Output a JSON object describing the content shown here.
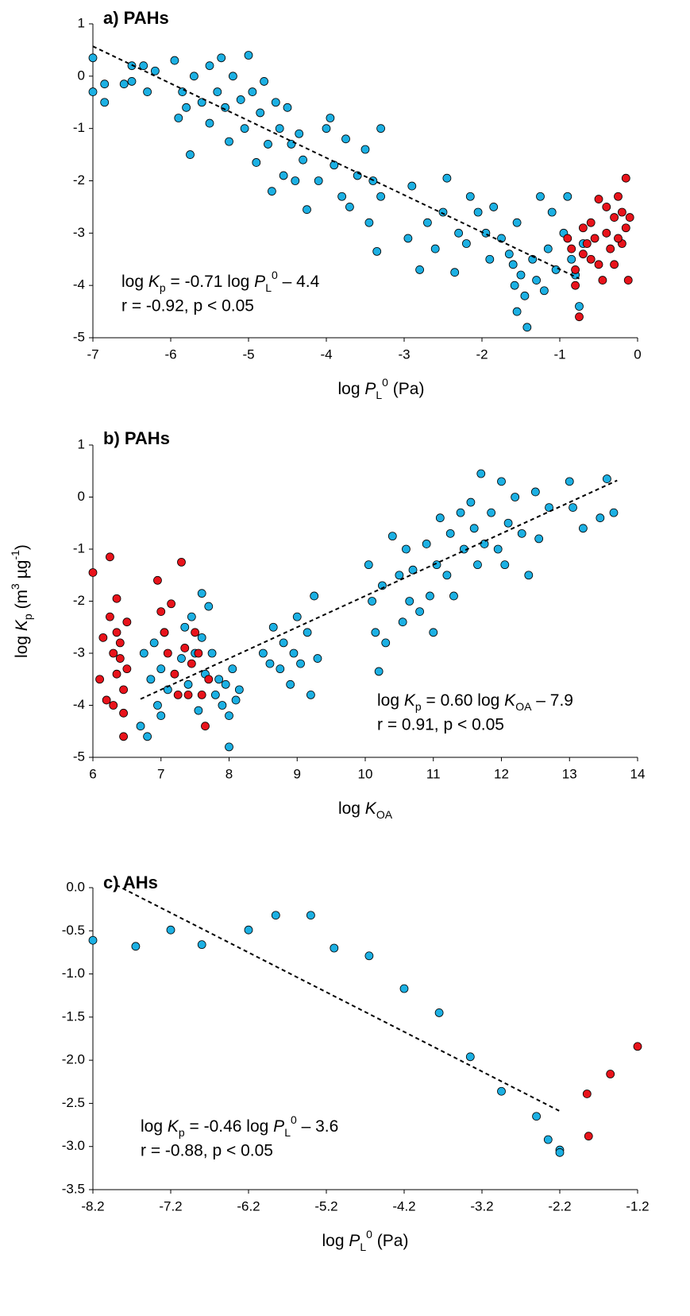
{
  "chart_data": [
    {
      "type": "scatter",
      "title": "a) PAHs",
      "equation": [
        [
          "log ",
          "K",
          "p",
          " = -0.71 log ",
          "P",
          "L",
          "0",
          " – 4.4"
        ],
        "r = -0.92, p < 0.05"
      ],
      "x_label": [
        "log ",
        "P",
        "L",
        "0",
        " (Pa)"
      ],
      "xlim": [
        -7,
        0
      ],
      "ylim": [
        -5,
        1
      ],
      "xticks": [
        -7,
        -6,
        -5,
        -4,
        -3,
        -2,
        -1,
        0
      ],
      "yticks": [
        -5,
        -4,
        -3,
        -2,
        -1,
        0,
        1
      ],
      "trendline": {
        "x": [
          -7,
          -0.75
        ],
        "values": [
          0.57,
          -3.87
        ]
      },
      "series": [
        {
          "color": "#1cb0e3",
          "x": [
            -7,
            -7,
            -6.85,
            -6.85,
            -6.6,
            -6.5,
            -6.5,
            -6.35,
            -6.3,
            -6.2,
            -5.95,
            -5.9,
            -5.85,
            -5.8,
            -5.75,
            -5.7,
            -5.6,
            -5.5,
            -5.5,
            -5.4,
            -5.35,
            -5.3,
            -5.25,
            -5.2,
            -5.1,
            -5.05,
            -5,
            -4.95,
            -4.9,
            -4.85,
            -4.8,
            -4.75,
            -4.7,
            -4.65,
            -4.6,
            -4.55,
            -4.5,
            -4.45,
            -4.4,
            -4.35,
            -4.3,
            -4.25,
            -4.1,
            -4,
            -3.95,
            -3.9,
            -3.8,
            -3.75,
            -3.7,
            -3.6,
            -3.5,
            -3.45,
            -3.4,
            -3.35,
            -3.3,
            -3.3,
            -2.95,
            -2.9,
            -2.8,
            -2.7,
            -2.6,
            -2.5,
            -2.45,
            -2.35,
            -2.3,
            -2.2,
            -2.15,
            -2.05,
            -1.95,
            -1.85,
            -1.75,
            -1.65,
            -1.6,
            -1.58,
            -1.55,
            -1.55,
            -1.5,
            -1.45,
            -1.42,
            -1.35,
            -1.3,
            -1.25,
            -1.2,
            -1.1,
            -1.05,
            -0.95,
            -0.9,
            -0.85,
            -0.8,
            -0.75,
            -0.7,
            -1.9,
            -1.15
          ],
          "values": [
            0.35,
            -0.3,
            -0.5,
            -0.15,
            -0.15,
            0.2,
            -0.1,
            0.2,
            -0.3,
            0.1,
            0.3,
            -0.8,
            -0.3,
            -0.6,
            -1.5,
            0,
            -0.5,
            -0.9,
            0.2,
            -0.3,
            0.35,
            -0.6,
            -1.25,
            0,
            -0.45,
            -1,
            0.4,
            -0.3,
            -1.65,
            -0.7,
            -0.1,
            -1.3,
            -2.2,
            -0.5,
            -1,
            -1.9,
            -0.6,
            -1.3,
            -2,
            -1.1,
            -1.6,
            -2.55,
            -2,
            -1,
            -0.8,
            -1.7,
            -2.3,
            -1.2,
            -2.5,
            -1.9,
            -1.4,
            -2.8,
            -2,
            -3.35,
            -1,
            -2.3,
            -3.1,
            -2.1,
            -3.7,
            -2.8,
            -3.3,
            -2.6,
            -1.95,
            -3.75,
            -3,
            -3.2,
            -2.3,
            -2.6,
            -3,
            -2.5,
            -3.1,
            -3.4,
            -3.6,
            -4,
            -4.5,
            -2.8,
            -3.8,
            -4.2,
            -4.8,
            -3.5,
            -3.9,
            -2.3,
            -4.1,
            -2.6,
            -3.7,
            -3,
            -2.3,
            -3.5,
            -3.8,
            -4.4,
            -3.2,
            -3.5,
            -3.3
          ]
        },
        {
          "color": "#e8131b",
          "x": [
            -0.9,
            -0.85,
            -0.8,
            -0.8,
            -0.75,
            -0.7,
            -0.7,
            -0.65,
            -0.6,
            -0.55,
            -0.5,
            -0.5,
            -0.45,
            -0.4,
            -0.4,
            -0.35,
            -0.3,
            -0.3,
            -0.25,
            -0.2,
            -0.2,
            -0.15,
            -0.15,
            -0.12,
            -0.1,
            -0.25,
            -0.6
          ],
          "values": [
            -3.1,
            -3.3,
            -3.7,
            -4,
            -4.6,
            -2.9,
            -3.4,
            -3.2,
            -2.8,
            -3.1,
            -3.6,
            -2.35,
            -3.9,
            -2.5,
            -3,
            -3.3,
            -2.7,
            -3.6,
            -2.3,
            -3.2,
            -2.6,
            -1.95,
            -2.9,
            -3.9,
            -2.7,
            -3.1,
            -3.5
          ]
        }
      ]
    },
    {
      "type": "scatter",
      "title": "b) PAHs",
      "equation": [
        [
          "log ",
          "K",
          "p",
          " = 0.60 log ",
          "K",
          "OA",
          " – 7.9"
        ],
        "r = 0.91, p < 0.05"
      ],
      "x_label": [
        "log ",
        "K",
        "OA"
      ],
      "y_label": [
        "log ",
        "K",
        "p",
        " (m",
        "3",
        " µg",
        "-1",
        ")"
      ],
      "xlim": [
        6,
        14
      ],
      "ylim": [
        -5,
        1
      ],
      "xticks": [
        6,
        7,
        8,
        9,
        10,
        11,
        12,
        13,
        14
      ],
      "yticks": [
        -5,
        -4,
        -3,
        -2,
        -1,
        0,
        1
      ],
      "trendline": {
        "x": [
          6.7,
          13.7
        ],
        "values": [
          -3.88,
          0.32
        ]
      },
      "series": [
        {
          "color": "#1cb0e3",
          "x": [
            6.7,
            6.75,
            6.8,
            6.85,
            6.9,
            6.95,
            7,
            7,
            7.05,
            7.1,
            7.3,
            7.35,
            7.4,
            7.45,
            7.5,
            7.55,
            7.6,
            7.6,
            7.65,
            7.7,
            7.75,
            7.8,
            7.85,
            7.9,
            7.95,
            8,
            8,
            8.05,
            8.1,
            8.15,
            8.5,
            8.6,
            8.65,
            8.75,
            8.8,
            8.9,
            8.95,
            9,
            9.05,
            9.15,
            9.2,
            9.25,
            9.3,
            10.05,
            10.1,
            10.15,
            10.2,
            10.25,
            10.3,
            10.4,
            10.5,
            10.55,
            10.6,
            10.65,
            10.7,
            10.8,
            10.9,
            10.95,
            11,
            11.05,
            11.1,
            11.2,
            11.25,
            11.3,
            11.4,
            11.45,
            11.55,
            11.6,
            11.65,
            11.7,
            11.75,
            11.85,
            11.95,
            12,
            12.05,
            12.1,
            12.2,
            12.3,
            12.4,
            12.5,
            12.55,
            12.7,
            13,
            13.05,
            13.2,
            13.45,
            13.55,
            13.65
          ],
          "values": [
            -4.4,
            -3,
            -4.6,
            -3.5,
            -2.8,
            -4,
            -3.3,
            -4.2,
            -2.6,
            -3.7,
            -3.1,
            -2.5,
            -3.6,
            -2.3,
            -3,
            -4.1,
            -1.85,
            -2.7,
            -3.4,
            -2.1,
            -3,
            -3.8,
            -3.5,
            -4,
            -3.6,
            -4.2,
            -4.8,
            -3.3,
            -3.9,
            -3.7,
            -3,
            -3.2,
            -2.5,
            -3.3,
            -2.8,
            -3.6,
            -3,
            -2.3,
            -3.2,
            -2.6,
            -3.8,
            -1.9,
            -3.1,
            -1.3,
            -2,
            -2.6,
            -3.35,
            -1.7,
            -2.8,
            -0.75,
            -1.5,
            -2.4,
            -1,
            -2,
            -1.4,
            -2.2,
            -0.9,
            -1.9,
            -2.6,
            -1.3,
            -0.4,
            -1.5,
            -0.7,
            -1.9,
            -0.3,
            -1,
            -0.1,
            -0.6,
            -1.3,
            0.45,
            -0.9,
            -0.3,
            -1,
            0.3,
            -1.3,
            -0.5,
            0,
            -0.7,
            -1.5,
            0.1,
            -0.8,
            -0.2,
            0.3,
            -0.2,
            -0.6,
            -0.4,
            0.35,
            -0.3
          ]
        },
        {
          "color": "#e8131b",
          "x": [
            6,
            6.1,
            6.15,
            6.2,
            6.25,
            6.25,
            6.3,
            6.3,
            6.35,
            6.35,
            6.35,
            6.4,
            6.4,
            6.45,
            6.45,
            6.45,
            6.5,
            6.5,
            6.95,
            7,
            7.05,
            7.1,
            7.15,
            7.2,
            7.25,
            7.3,
            7.35,
            7.45,
            7.5,
            7.55,
            7.6,
            7.65,
            7.7,
            7.4
          ],
          "values": [
            -1.45,
            -3.5,
            -2.7,
            -3.9,
            -1.15,
            -2.3,
            -3,
            -4,
            -1.95,
            -2.6,
            -3.4,
            -2.8,
            -3.1,
            -3.7,
            -4.15,
            -4.6,
            -2.4,
            -3.3,
            -1.6,
            -2.2,
            -2.6,
            -3,
            -2.05,
            -3.4,
            -3.8,
            -1.25,
            -2.9,
            -3.2,
            -2.6,
            -3,
            -3.8,
            -4.4,
            -3.5,
            -3.8
          ]
        }
      ]
    },
    {
      "type": "scatter",
      "title": "c) AHs",
      "equation": [
        [
          "log ",
          "K",
          "p",
          " = -0.46 log ",
          "P",
          "L",
          "0",
          " – 3.6"
        ],
        "r = -0.88, p < 0.05"
      ],
      "x_label": [
        "log ",
        "P",
        "L",
        "0",
        " (Pa)"
      ],
      "xlim": [
        -8.2,
        -1.2
      ],
      "ylim": [
        -3.5,
        0
      ],
      "xticks": [
        -8.2,
        -7.2,
        -6.2,
        -5.2,
        -4.2,
        -3.2,
        -2.2,
        -1.2
      ],
      "yticks": [
        -3.5,
        {
          "value": -3,
          "label": "-3.0"
        },
        -2.5,
        {
          "value": -2,
          "label": "-2.0"
        },
        -1.5,
        {
          "value": -1,
          "label": "-1.0"
        },
        -0.5,
        {
          "value": 0,
          "label": "0.0"
        }
      ],
      "trendline": {
        "x": [
          -7.9,
          -2.2
        ],
        "values": [
          0.03,
          -2.59
        ]
      },
      "series": [
        {
          "color": "#1cb0e3",
          "x": [
            -8.2,
            -7.65,
            -7.2,
            -6.8,
            -6.2,
            -5.85,
            -5.4,
            -5.1,
            -4.65,
            -4.2,
            -3.75,
            -3.35,
            -2.95,
            -2.5,
            -2.35,
            -2.2,
            -2.2
          ],
          "values": [
            -0.61,
            -0.68,
            -0.49,
            -0.66,
            -0.49,
            -0.32,
            -0.32,
            -0.7,
            -0.79,
            -1.17,
            -1.45,
            -1.96,
            -2.36,
            -2.65,
            -2.92,
            -3.04,
            -3.07
          ]
        },
        {
          "color": "#e8131b",
          "x": [
            -1.85,
            -1.83,
            -1.55,
            -1.2
          ],
          "values": [
            -2.39,
            -2.88,
            -2.16,
            -1.84
          ]
        }
      ]
    }
  ]
}
